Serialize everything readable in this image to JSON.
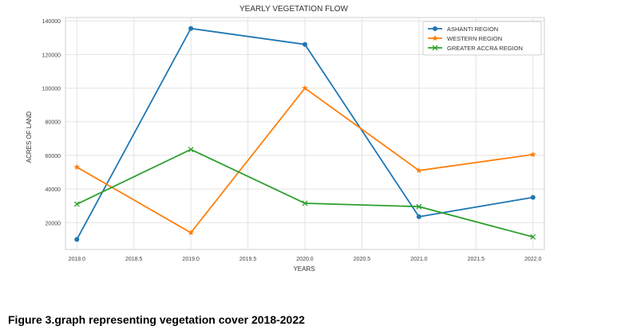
{
  "caption": "Figure 3.graph representing vegetation cover 2018-2022",
  "chart_data": {
    "type": "line",
    "title": "YEARLY VEGETATION FLOW",
    "xlabel": "YEARS",
    "ylabel": "ACRES OF LAND",
    "x": [
      2018,
      2019,
      2020,
      2021,
      2022
    ],
    "xlim": [
      2017.9,
      2022.1
    ],
    "ylim": [
      4000,
      142000
    ],
    "xticks": [
      2018.0,
      2018.5,
      2019.0,
      2019.5,
      2020.0,
      2020.5,
      2021.0,
      2021.5,
      2022.0
    ],
    "xtick_labels": [
      "2018.0",
      "2018.5",
      "2019.0",
      "2019.5",
      "2020.0",
      "2020.5",
      "2021.0",
      "2021.5",
      "2022.0"
    ],
    "yticks": [
      20000,
      40000,
      60000,
      80000,
      100000,
      120000,
      140000
    ],
    "ytick_labels": [
      "20000",
      "40000",
      "60000",
      "80000",
      "100000",
      "120000",
      "140000"
    ],
    "grid": true,
    "legend_position": "top-right",
    "series": [
      {
        "name": "ASHANTI REGION",
        "color": "#1f77b4",
        "marker": "circle",
        "values": [
          10000,
          135500,
          126000,
          23500,
          35000
        ]
      },
      {
        "name": "WESTERN REGION",
        "color": "#ff7f0e",
        "marker": "star",
        "values": [
          53000,
          14000,
          100000,
          51000,
          60500
        ]
      },
      {
        "name": "GREATER ACCRA REGION",
        "color": "#2ca02c",
        "marker": "x",
        "values": [
          31000,
          63500,
          31500,
          29500,
          11500
        ]
      }
    ]
  }
}
